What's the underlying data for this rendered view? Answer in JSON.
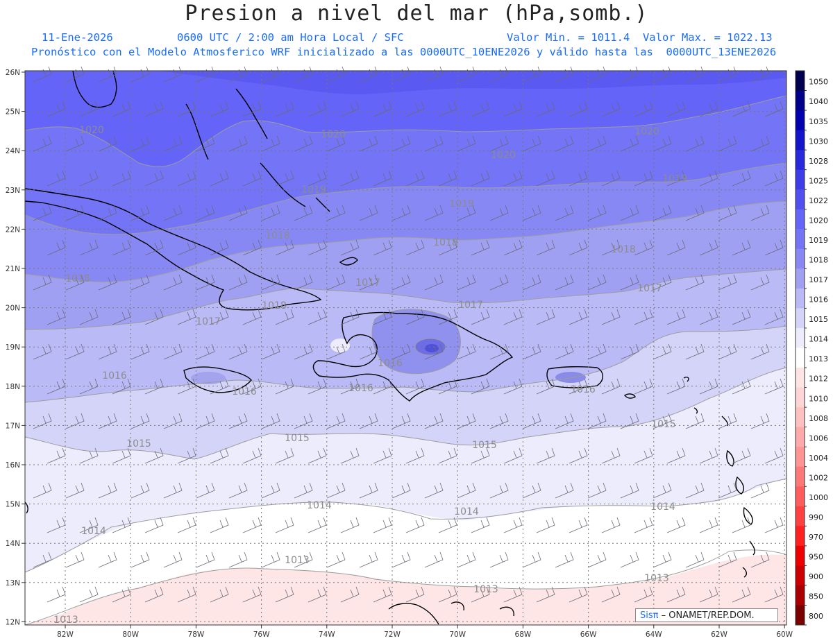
{
  "title": "Presion a nivel del mar (hPa,somb.)",
  "subtitle": {
    "date": "11-Ene-2026",
    "time": "0600 UTC / 2:00 am Hora Local / SFC",
    "range": "Valor Min. = 1011.4  Valor Max. = 1022.13",
    "model": "Pronóstico con el Modelo Atmosferico WRF inicializado a las 0000UTC_10ENE2026 y válido hasta las  0000UTC_13ENE2026"
  },
  "lat_labels": [
    "26N",
    "25N",
    "24N",
    "23N",
    "22N",
    "21N",
    "20N",
    "19N",
    "18N",
    "17N",
    "16N",
    "15N",
    "14N",
    "13N",
    "12N"
  ],
  "lon_labels": [
    "82W",
    "80W",
    "78W",
    "76W",
    "74W",
    "72W",
    "70W",
    "68W",
    "66W",
    "64W",
    "62W",
    "60W"
  ],
  "colorbar_labels": [
    "1050",
    "1040",
    "1035",
    "1030",
    "1028",
    "1025",
    "1022",
    "1020",
    "1019",
    "1018",
    "1017",
    "1016",
    "1015",
    "1014",
    "1013",
    "1012",
    "1010",
    "1008",
    "1006",
    "1004",
    "1002",
    "1000",
    "990",
    "970",
    "950",
    "900",
    "850",
    "800"
  ],
  "colorbar_colors": [
    "#00004f",
    "#00008a",
    "#0000b0",
    "#1414cc",
    "#2828dc",
    "#3c3ce8",
    "#5050f0",
    "#6464f8",
    "#7474f6",
    "#8888f4",
    "#a0a0f2",
    "#babaf6",
    "#d4d4f8",
    "#ececfc",
    "#ffffff",
    "#ffe4e4",
    "#ffd4d4",
    "#ffc0c0",
    "#ffaaaa",
    "#ff9494",
    "#ff7878",
    "#ff5c5c",
    "#ff4040",
    "#ff2020",
    "#ee0000",
    "#cc0000",
    "#aa0000",
    "#7a0000"
  ],
  "contour_labels": [
    "1020",
    "1020",
    "1020",
    "1020",
    "1019",
    "1019",
    "1019",
    "1018",
    "1018",
    "1018",
    "1018",
    "1018",
    "1017",
    "1017",
    "1017",
    "1017",
    "1016",
    "1016",
    "1016",
    "1016",
    "1016",
    "1015",
    "1015",
    "1015",
    "1015",
    "1014",
    "1014",
    "1014",
    "1014",
    "1013",
    "1013",
    "1013",
    "1013"
  ],
  "badge": {
    "brand": "Sisπ",
    "text": "– ONAMET/REP.DOM."
  }
}
